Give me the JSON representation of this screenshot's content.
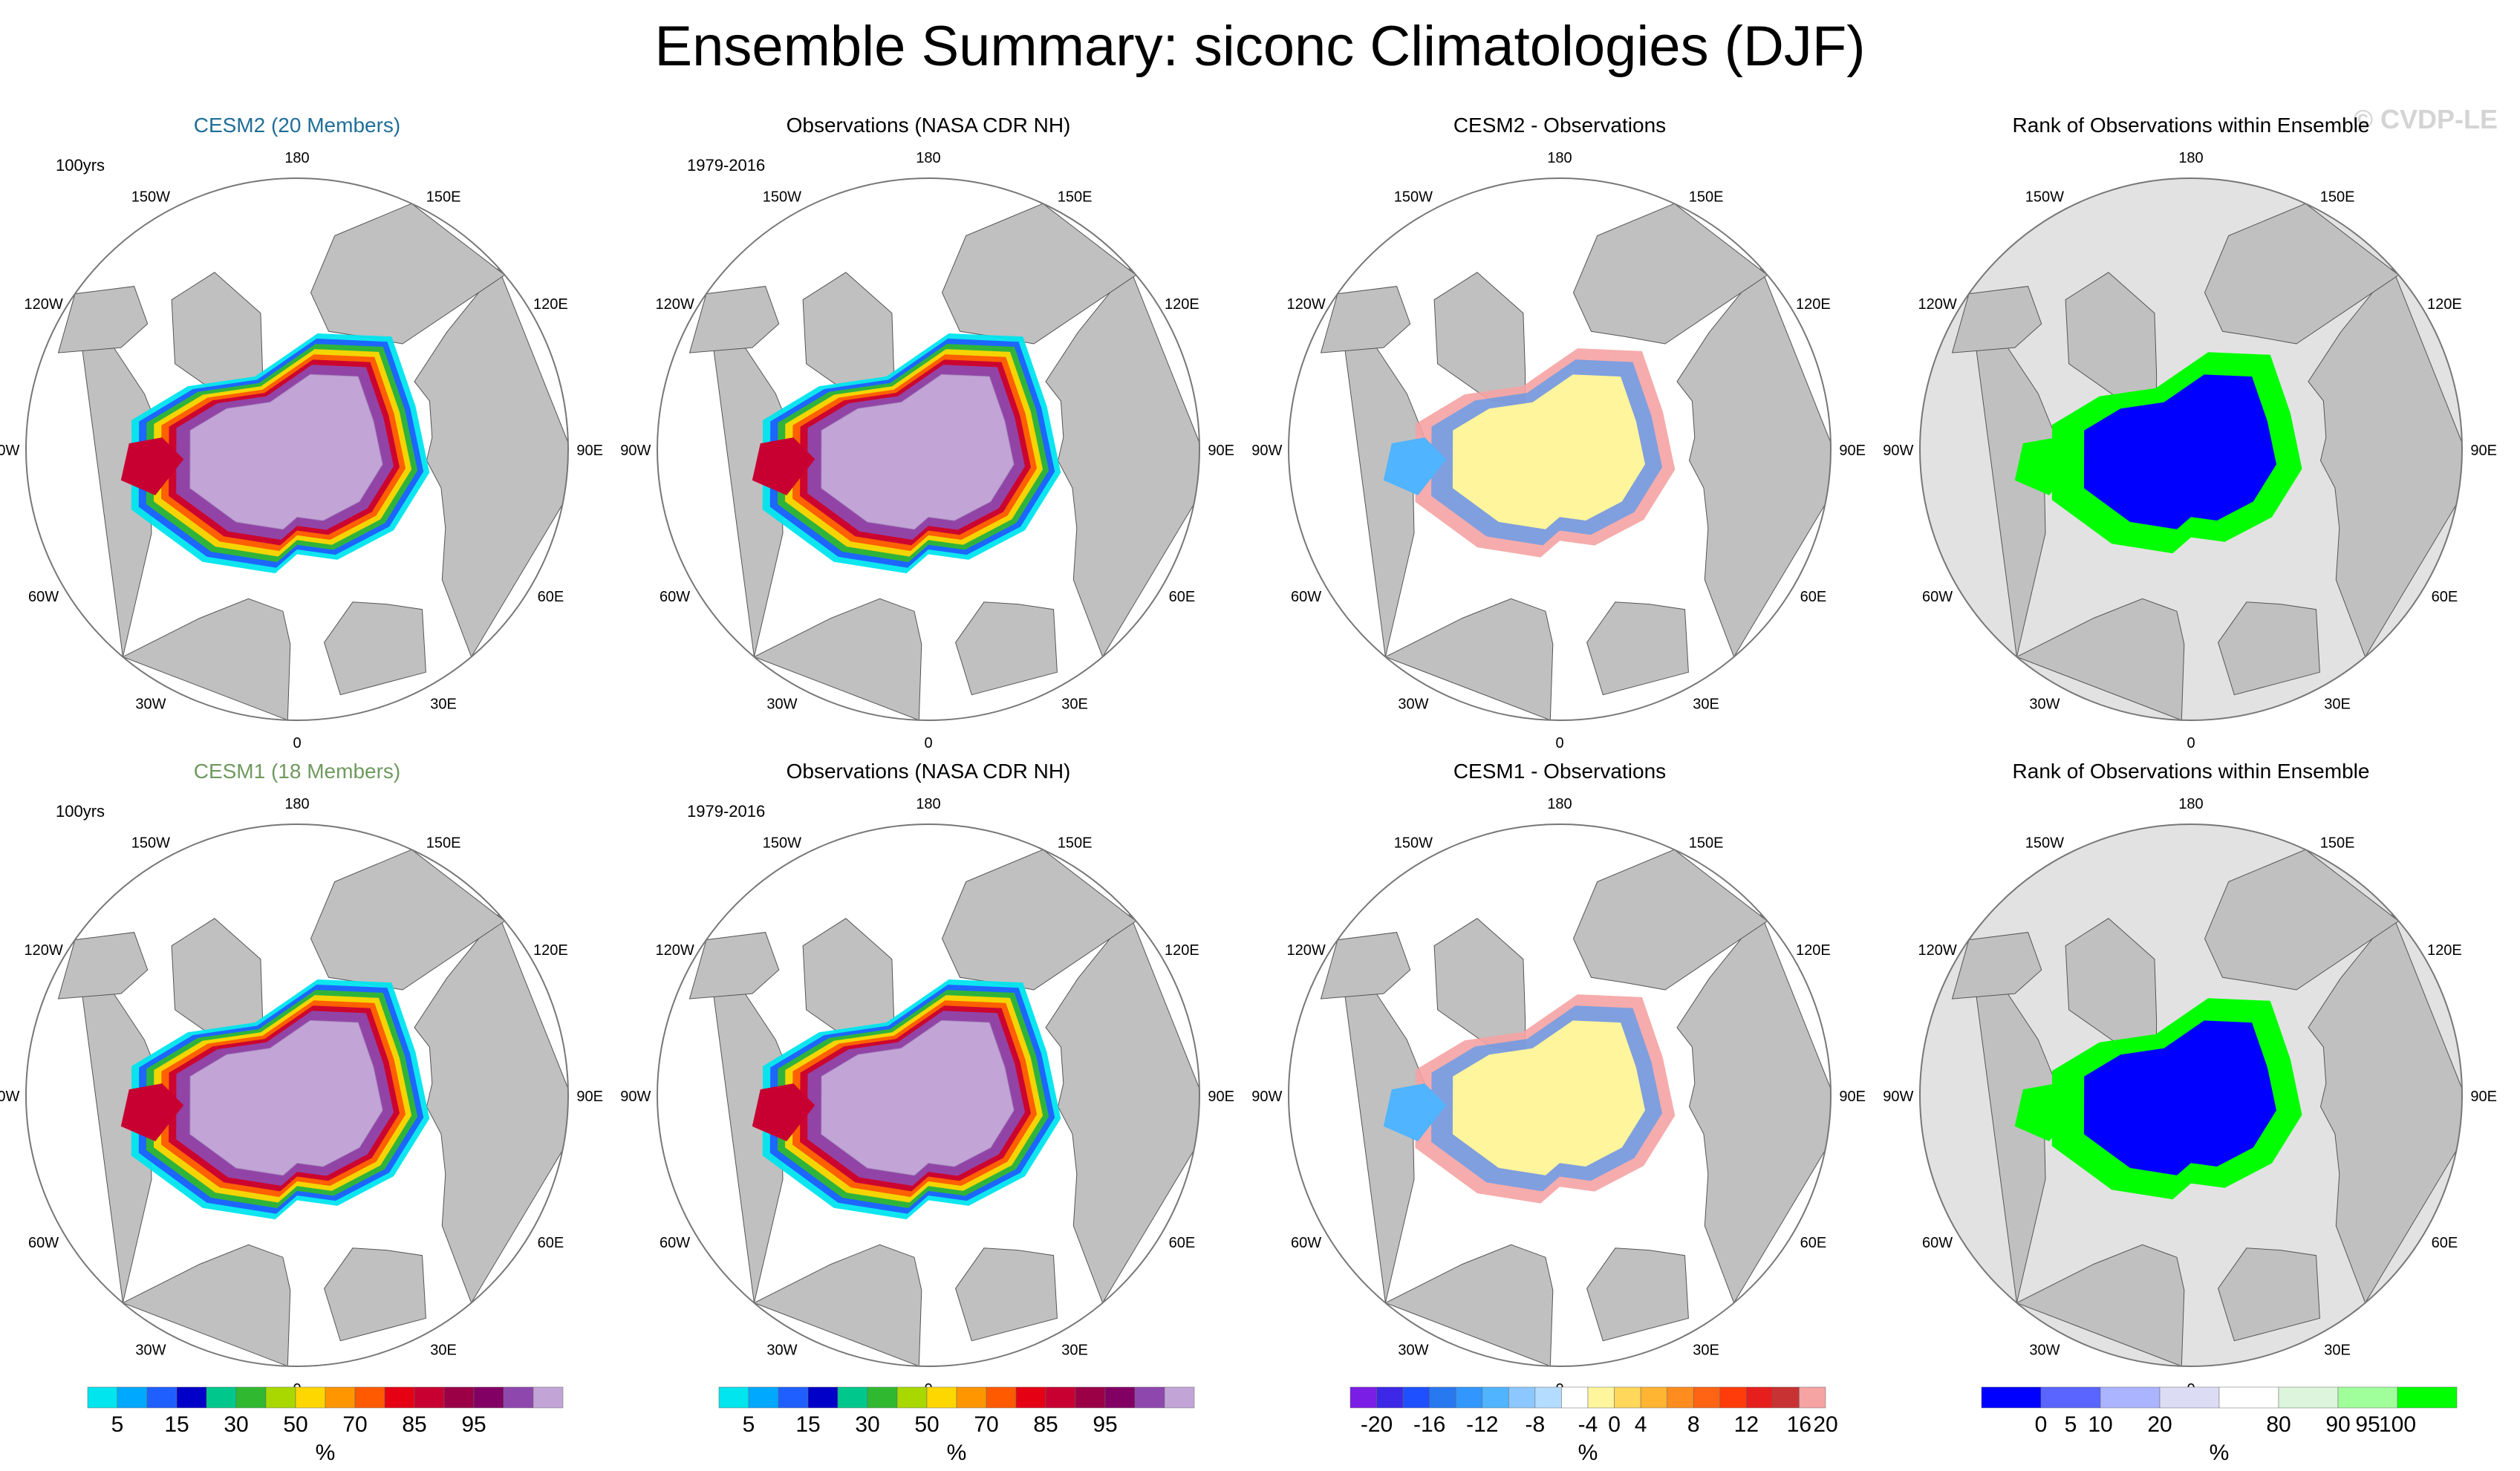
{
  "title": "Ensemble Summary: siconc Climatologies (DJF)",
  "watermark": "© CVDP-LE",
  "colors": {
    "land": "#c0c0c0",
    "ocean": "#ffffff",
    "ice_high": "#c2a5d6",
    "ice_purple": "#8e48ad",
    "rank_low": "#0000ff",
    "rank_high": "#00ff00",
    "rank_mid": "#e2e2e2",
    "diff_pos": "#fff59c",
    "diff_neg": "#f5a3a3",
    "title_cesm2": "#1f6e97",
    "title_cesm1": "#6f9a5f"
  },
  "chart_data": [
    {
      "type": "heatmap",
      "panel": "CESM2 (20 Members)",
      "title": "CESM2 (20 Members)",
      "label": "100yrs",
      "colormap": "concentration",
      "title_color": "#1f6e97",
      "row": 0,
      "col": 0
    },
    {
      "type": "heatmap",
      "panel": "Observations (NASA CDR NH)",
      "title": "Observations (NASA CDR NH)",
      "label": "1979-2016",
      "colormap": "concentration",
      "row": 0,
      "col": 1
    },
    {
      "type": "heatmap",
      "panel": "CESM2 - Observations",
      "title": "CESM2 - Observations",
      "label": "",
      "colormap": "difference",
      "row": 0,
      "col": 2
    },
    {
      "type": "heatmap",
      "panel": "Rank of Observations within Ensemble",
      "title": "Rank of Observations within Ensemble",
      "label": "",
      "colormap": "rank",
      "row": 0,
      "col": 3
    },
    {
      "type": "heatmap",
      "panel": "CESM1 (18 Members)",
      "title": "CESM1 (18 Members)",
      "label": "100yrs",
      "colormap": "concentration",
      "title_color": "#6f9a5f",
      "row": 1,
      "col": 0
    },
    {
      "type": "heatmap",
      "panel": "Observations (NASA CDR NH)",
      "title": "Observations (NASA CDR NH)",
      "label": "1979-2016",
      "colormap": "concentration",
      "row": 1,
      "col": 1
    },
    {
      "type": "heatmap",
      "panel": "CESM1 - Observations",
      "title": "CESM1 - Observations",
      "label": "",
      "colormap": "difference",
      "row": 1,
      "col": 2
    },
    {
      "type": "heatmap",
      "panel": "Rank of Observations within Ensemble",
      "title": "Rank of Observations within Ensemble",
      "label": "",
      "colormap": "rank",
      "row": 1,
      "col": 3
    }
  ],
  "longitude_labels": [
    "180",
    "150E",
    "120E",
    "90E",
    "60E",
    "30E",
    "0",
    "30W",
    "60W",
    "90W",
    "120W",
    "150W"
  ],
  "colorbars": [
    {
      "name": "concentration",
      "colors": [
        "#00e5ee",
        "#00a8ff",
        "#1f5fff",
        "#0000c8",
        "#00c88c",
        "#30b830",
        "#a8d800",
        "#ffd700",
        "#ff9600",
        "#ff5a00",
        "#e60014",
        "#c80032",
        "#9b0046",
        "#820064",
        "#8e48ad",
        "#c2a5d6"
      ],
      "tick_labels": [
        "5",
        "15",
        "30",
        "50",
        "70",
        "85",
        "95"
      ],
      "tick_positions": [
        1,
        3,
        5,
        7,
        9,
        11,
        13
      ],
      "unit": "%"
    },
    {
      "name": "difference",
      "colors": [
        "#7a1ee6",
        "#3c28e6",
        "#1e50ff",
        "#2878f0",
        "#3296ff",
        "#50b4ff",
        "#8cc8ff",
        "#b4dcff",
        "#ffffff",
        "#fff59c",
        "#ffd75a",
        "#ffb432",
        "#ff8c1e",
        "#ff6414",
        "#ff3c0a",
        "#e61e1e",
        "#c83232",
        "#f5a3a3"
      ],
      "tick_labels": [
        "-20",
        "-16",
        "-12",
        "-8",
        "-4",
        "0",
        "4",
        "8",
        "12",
        "16",
        "20"
      ],
      "tick_positions": [
        1,
        3,
        5,
        7,
        9,
        10,
        11,
        13,
        15,
        17,
        18
      ],
      "unit": "%"
    },
    {
      "name": "rank",
      "colors": [
        "#0000ff",
        "#5a64ff",
        "#aab4ff",
        "#dcdcf5",
        "#ffffff",
        "#dcf5dc",
        "#a0ff9b",
        "#00ff00"
      ],
      "tick_labels": [
        "0",
        "5",
        "10",
        "20",
        "80",
        "90",
        "95",
        "100"
      ],
      "tick_positions": [
        1,
        1.5,
        2,
        3,
        5,
        6,
        6.5,
        7
      ],
      "unit": "%"
    }
  ]
}
